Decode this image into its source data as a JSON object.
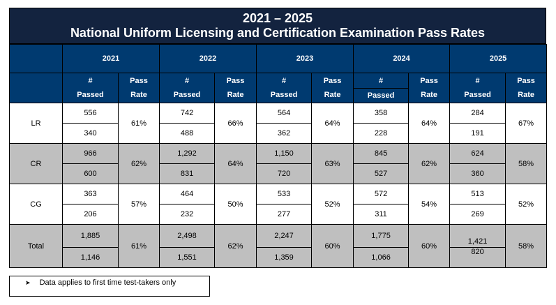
{
  "title": {
    "line1": "2021 – 2025",
    "line2": "National Uniform Licensing and Certification Examination Pass Rates"
  },
  "years": [
    "2021",
    "2022",
    "2023",
    "2024",
    "2025"
  ],
  "subheaders": {
    "passed_top": "#",
    "passed_bottom": "Passed",
    "rate_top": "Pass",
    "rate_bottom": "Rate"
  },
  "rows": [
    {
      "label": "LR",
      "shade": "white",
      "years": [
        {
          "top": "556",
          "bottom": "340",
          "rate": "61%"
        },
        {
          "top": "742",
          "bottom": "488",
          "rate": "66%"
        },
        {
          "top": "564",
          "bottom": "362",
          "rate": "64%"
        },
        {
          "top": "358",
          "bottom": "228",
          "rate": "64%"
        },
        {
          "top": "284",
          "bottom": "191",
          "rate": "67%"
        }
      ]
    },
    {
      "label": "CR",
      "shade": "gray",
      "years": [
        {
          "top": "966",
          "bottom": "600",
          "rate": "62%"
        },
        {
          "top": "1,292",
          "bottom": "831",
          "rate": "64%"
        },
        {
          "top": "1,150",
          "bottom": "720",
          "rate": "63%"
        },
        {
          "top": "845",
          "bottom": "527",
          "rate": "62%"
        },
        {
          "top": "624",
          "bottom": "360",
          "rate": "58%"
        }
      ]
    },
    {
      "label": "CG",
      "shade": "white",
      "years": [
        {
          "top": "363",
          "bottom": "206",
          "rate": "57%"
        },
        {
          "top": "464",
          "bottom": "232",
          "rate": "50%"
        },
        {
          "top": "533",
          "bottom": "277",
          "rate": "52%"
        },
        {
          "top": "572",
          "bottom": "311",
          "rate": "54%"
        },
        {
          "top": "513",
          "bottom": "269",
          "rate": "52%"
        }
      ]
    },
    {
      "label": "Total",
      "shade": "gray",
      "years": [
        {
          "top": "1,885",
          "bottom": "1,146",
          "rate": "61%"
        },
        {
          "top": "2,498",
          "bottom": "1,551",
          "rate": "62%"
        },
        {
          "top": "2,247",
          "bottom": "1,359",
          "rate": "60%"
        },
        {
          "top": "1,775",
          "bottom": "1,066",
          "rate": "60%"
        },
        {
          "top": "1,421",
          "bottom": "820",
          "rate": "58%"
        }
      ]
    }
  ],
  "footnote": {
    "bullet_icon": "arrowhead-bullet",
    "text": "Data applies to first time test-takers only"
  },
  "colors": {
    "title_bg": "#13233f",
    "header_bg": "#003a70",
    "shade_gray": "#bfbfbf"
  }
}
